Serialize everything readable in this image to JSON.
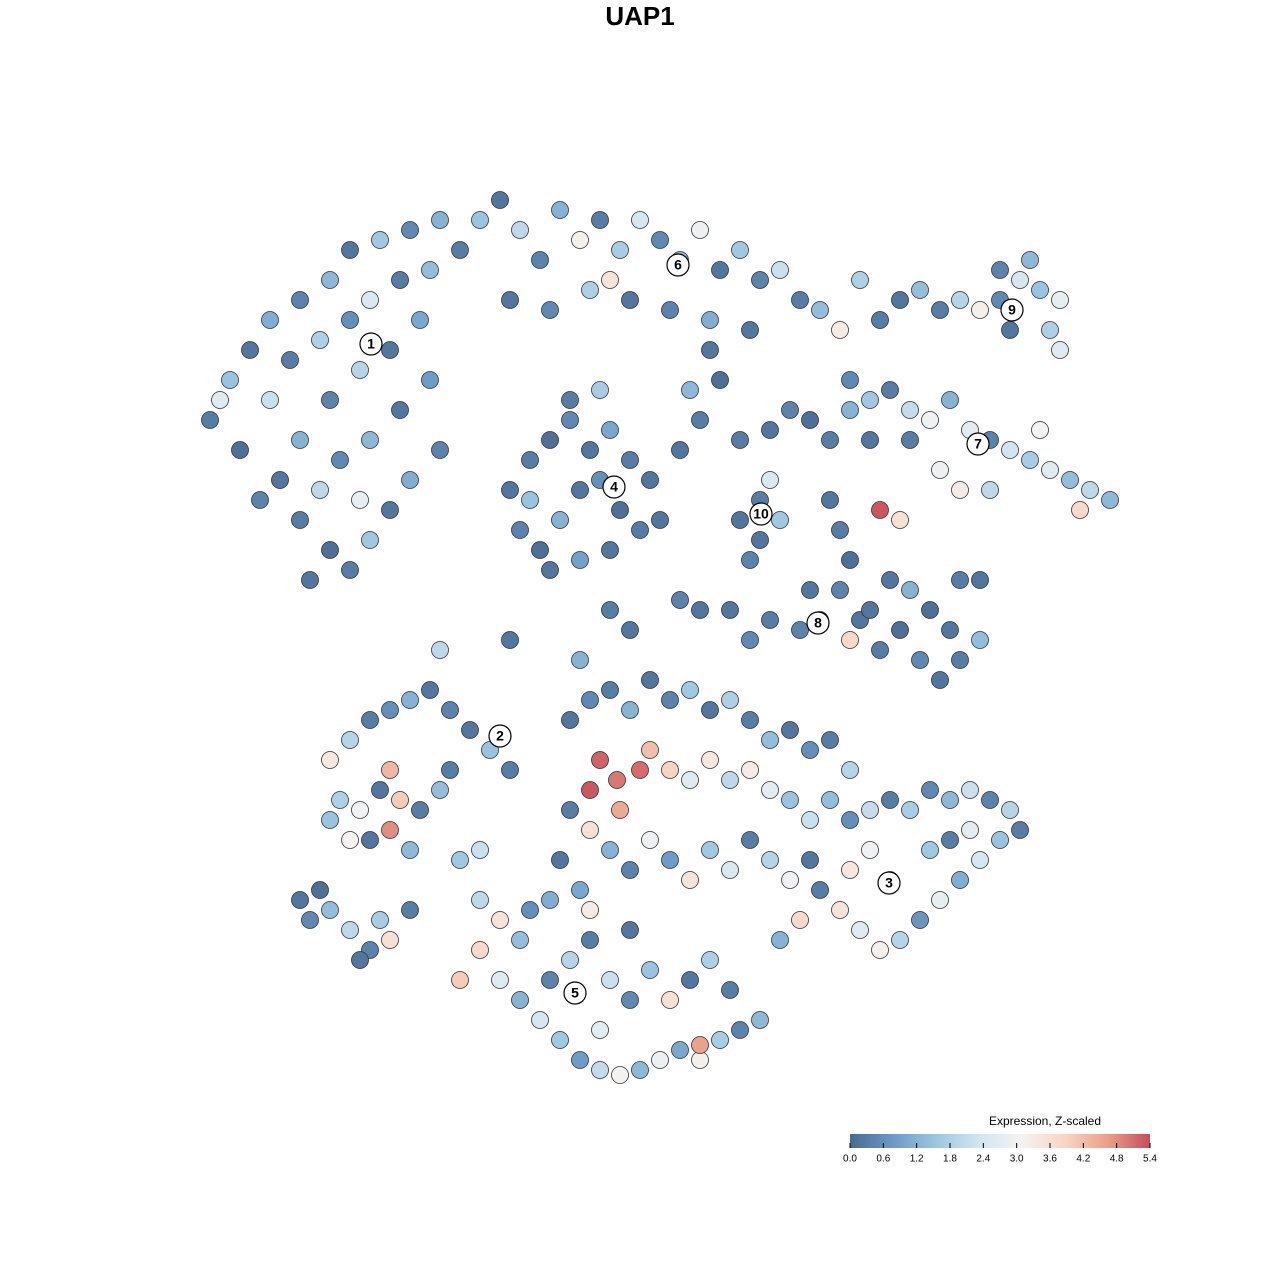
{
  "chart_data": {
    "type": "scatter",
    "title": "UAP1",
    "xlim": [
      0,
      100
    ],
    "ylim": [
      0,
      100
    ],
    "grid": false,
    "point_stroke": "#333333",
    "x": [
      6,
      8,
      10,
      12,
      15,
      18,
      20,
      23,
      26,
      29,
      9,
      12,
      14,
      17,
      20,
      22,
      25,
      28,
      13,
      15,
      18,
      21,
      24,
      27,
      15,
      17,
      19,
      22,
      25,
      28,
      18,
      20,
      22,
      24,
      26,
      29,
      16,
      21,
      11,
      7,
      31,
      33,
      35,
      37,
      39,
      41,
      43,
      45,
      47,
      49,
      51,
      53,
      55,
      57,
      59,
      61,
      63,
      65,
      67,
      69,
      36,
      40,
      44,
      48,
      52,
      56,
      60,
      46,
      36,
      38,
      40,
      42,
      44,
      46,
      48,
      50,
      37,
      39,
      41,
      43,
      45,
      47,
      49,
      40,
      43,
      46,
      42,
      45,
      51,
      38,
      53,
      55,
      57,
      54,
      56,
      59,
      59,
      61,
      63,
      61,
      62,
      60,
      62,
      64,
      66,
      68,
      70,
      73,
      75,
      77,
      79,
      81,
      83,
      85,
      87,
      89,
      91,
      86,
      90,
      91,
      85,
      71,
      88,
      70,
      72,
      74,
      76,
      78,
      80,
      82,
      84,
      86,
      88,
      90,
      92,
      94,
      96,
      93,
      76,
      79,
      81,
      84,
      72,
      89,
      73,
      75,
      68,
      69,
      70,
      69,
      71,
      73,
      75,
      77,
      79,
      81,
      83,
      80,
      78,
      76,
      74,
      72,
      67,
      65,
      70,
      66,
      62,
      60,
      58,
      81,
      83,
      29,
      36,
      46,
      48,
      53,
      55,
      43,
      18,
      20,
      22,
      24,
      26,
      28,
      30,
      32,
      34,
      36,
      19,
      21,
      23,
      25,
      27,
      29,
      22,
      24,
      26,
      20,
      18,
      30,
      33,
      31,
      24,
      15,
      16,
      18,
      20,
      22,
      24,
      21,
      23,
      26,
      17,
      42,
      44,
      46,
      48,
      50,
      52,
      54,
      56,
      58,
      60,
      62,
      64,
      66,
      68,
      70,
      45,
      46.7,
      49,
      44,
      47,
      50,
      52,
      54,
      56,
      58,
      60,
      62,
      64,
      66,
      42,
      44,
      46,
      48,
      50,
      52,
      54,
      56,
      58,
      60,
      62,
      64,
      41,
      43,
      68,
      70,
      72,
      74,
      76,
      78,
      80,
      82,
      84,
      86,
      87,
      85,
      83,
      81,
      79,
      77,
      75,
      73,
      71,
      69,
      67,
      65,
      63,
      74,
      72,
      78,
      66,
      80,
      82,
      70,
      33,
      35,
      37,
      33,
      35,
      37,
      39,
      41,
      43,
      45,
      47,
      49,
      51,
      53,
      55,
      57,
      59,
      61,
      40,
      42,
      44,
      46,
      48,
      50,
      52,
      54,
      56,
      58,
      38,
      40,
      44,
      48,
      55,
      31,
      45
    ],
    "y": [
      68,
      72,
      75,
      78,
      80,
      82,
      85,
      86,
      87,
      88,
      65,
      70,
      74,
      76,
      78,
      80,
      82,
      83,
      62,
      66,
      70,
      73,
      75,
      78,
      58,
      61,
      64,
      66,
      69,
      72,
      55,
      53,
      56,
      59,
      62,
      65,
      52,
      60,
      60,
      70,
      85,
      88,
      90,
      87,
      84,
      89,
      86,
      88,
      85,
      88,
      86,
      84,
      87,
      83,
      85,
      82,
      83,
      80,
      79,
      77,
      80,
      79,
      81,
      80,
      79,
      78,
      77,
      82,
      61,
      64,
      66,
      68,
      65,
      67,
      64,
      62,
      57,
      55,
      58,
      61,
      62,
      59,
      57,
      53,
      54,
      55,
      70,
      71,
      58,
      60,
      65,
      68,
      72,
      71,
      75,
      66,
      58,
      60,
      58,
      56,
      62,
      54,
      67,
      69,
      68,
      66,
      69,
      78,
      80,
      81,
      79,
      80,
      79,
      80,
      82,
      81,
      80,
      77,
      77,
      75,
      83,
      82,
      84,
      72,
      70,
      71,
      69,
      68,
      70,
      67,
      66,
      65,
      64,
      63,
      62,
      61,
      60,
      59,
      66,
      63,
      61,
      61,
      66,
      67,
      59,
      58,
      60,
      57,
      54,
      51,
      48,
      45,
      47,
      44,
      42,
      44,
      46,
      47,
      49,
      51,
      52,
      49,
      48,
      47,
      46,
      51,
      48,
      46,
      49,
      52,
      52,
      45,
      46,
      49,
      47,
      50,
      49,
      44,
      34,
      36,
      38,
      39,
      40,
      41,
      39,
      37,
      35,
      33,
      30,
      29,
      31,
      30,
      29,
      31,
      26,
      27,
      25,
      26,
      28,
      33,
      25,
      24,
      33,
      20,
      18,
      19,
      17,
      15,
      16,
      14,
      18,
      19,
      21,
      38,
      40,
      41,
      39,
      42,
      40,
      41,
      39,
      40,
      38,
      36,
      37,
      35,
      36,
      33,
      34,
      32,
      33,
      31,
      29,
      35,
      33,
      32,
      34,
      32,
      33,
      31,
      30,
      28,
      29,
      27,
      25,
      23,
      26,
      24,
      22,
      25,
      23,
      26,
      24,
      22,
      24,
      21,
      30,
      28,
      29,
      30,
      29,
      31,
      30,
      31,
      30,
      29,
      27,
      26,
      24,
      22,
      20,
      18,
      16,
      15,
      17,
      19,
      21,
      18,
      16,
      22,
      25,
      25,
      24,
      26,
      27,
      23,
      20,
      18,
      16,
      15,
      12,
      10,
      8,
      6,
      4,
      3,
      2.5,
      3,
      4,
      5,
      4,
      6,
      7,
      8,
      12,
      14,
      16,
      12,
      10,
      13,
      10,
      12,
      14,
      11,
      19,
      20,
      19,
      17,
      5.5,
      12,
      7
    ],
    "values": [
      0.3,
      1.5,
      0.2,
      1.1,
      0.4,
      1.3,
      0.2,
      1.6,
      0.5,
      1.2,
      0.1,
      2.2,
      0.3,
      1.8,
      0.6,
      2.5,
      0.3,
      1.4,
      0.2,
      1.2,
      0.4,
      1.9,
      0.2,
      1.0,
      0.3,
      2.0,
      0.5,
      1.3,
      0.2,
      0.8,
      0.1,
      0.3,
      1.6,
      0.2,
      1.1,
      0.4,
      0.2,
      2.8,
      0.4,
      2.6,
      0.3,
      1.5,
      0.2,
      2.0,
      0.4,
      1.2,
      3.2,
      0.3,
      1.7,
      2.4,
      0.5,
      1.3,
      2.9,
      0.2,
      1.6,
      0.4,
      2.2,
      0.3,
      1.4,
      3.3,
      0.2,
      0.5,
      1.8,
      0.2,
      0.4,
      1.1,
      0.2,
      3.5,
      0.2,
      0.3,
      0.1,
      0.5,
      0.2,
      1.0,
      0.3,
      0.2,
      0.4,
      0.1,
      1.2,
      0.2,
      0.6,
      0.1,
      0.3,
      0.2,
      0.9,
      0.2,
      0.3,
      1.7,
      0.2,
      1.5,
      0.2,
      0.3,
      0.1,
      1.3,
      0.2,
      0.3,
      0.2,
      0.3,
      1.6,
      0.2,
      2.5,
      0.4,
      0.2,
      0.4,
      0.1,
      0.3,
      1.2,
      0.3,
      0.2,
      1.4,
      0.3,
      1.9,
      3.2,
      0.5,
      2.4,
      1.5,
      2.8,
      0.2,
      1.8,
      2.6,
      0.4,
      1.8,
      1.3,
      0.5,
      1.6,
      0.3,
      2.1,
      3.0,
      1.2,
      2.7,
      0.4,
      2.3,
      1.7,
      2.6,
      1.4,
      2.0,
      1.3,
      3.8,
      0.3,
      2.9,
      3.3,
      2.0,
      0.2,
      3.1,
      5.3,
      3.6,
      0.2,
      0.3,
      0.1,
      0.4,
      0.2,
      0.3,
      0.1,
      0.5,
      0.2,
      0.3,
      1.4,
      0.2,
      0.1,
      1.2,
      0.2,
      0.2,
      0.3,
      0.4,
      3.8,
      0.2,
      0.3,
      0.5,
      0.2,
      0.3,
      0.2,
      2.0,
      0.2,
      0.3,
      0.2,
      0.4,
      0.2,
      1.2,
      3.4,
      1.9,
      0.3,
      0.6,
      1.2,
      0.2,
      0.4,
      0.2,
      1.5,
      0.3,
      1.8,
      3.0,
      0.2,
      4.0,
      0.3,
      1.4,
      0.2,
      4.8,
      1.3,
      3.1,
      1.5,
      0.3,
      2.2,
      1.6,
      4.3,
      0.2,
      0.5,
      1.4,
      2.0,
      0.4,
      3.6,
      0.2,
      1.7,
      0.3,
      0.1,
      0.2,
      0.5,
      0.3,
      1.2,
      0.2,
      0.4,
      1.6,
      0.2,
      1.8,
      0.3,
      1.4,
      0.2,
      0.6,
      0.3,
      1.9,
      5.2,
      5.0,
      5.1,
      5.3,
      4.5,
      4.2,
      3.9,
      2.6,
      3.4,
      2.0,
      3.3,
      2.7,
      1.5,
      2.2,
      0.3,
      3.6,
      1.2,
      0.4,
      2.9,
      0.8,
      3.5,
      1.6,
      2.5,
      0.3,
      1.9,
      3.0,
      0.2,
      1.0,
      1.4,
      0.6,
      2.1,
      0.3,
      1.7,
      0.5,
      1.3,
      2.2,
      0.4,
      1.9,
      0.3,
      1.5,
      2.4,
      1.1,
      2.8,
      0.7,
      1.9,
      3.2,
      2.6,
      3.5,
      0.3,
      3.8,
      1.2,
      2.5,
      3.0,
      1.6,
      0.2,
      0.3,
      2.7,
      3.4,
      2.0,
      3.5,
      1.4,
      3.8,
      2.6,
      1.2,
      2.4,
      1.6,
      0.8,
      2.1,
      3.1,
      1.3,
      2.9,
      1.0,
      3.2,
      1.7,
      0.4,
      1.3,
      0.4,
      1.9,
      0.3,
      2.2,
      0.5,
      1.5,
      3.6,
      0.2,
      1.8,
      0.3,
      0.6,
      1.1,
      3.3,
      0.2,
      4.6,
      4.0,
      2.7
    ],
    "annotations": [
      {
        "text": "1",
        "x": 22.1,
        "y": 75.6
      },
      {
        "text": "6",
        "x": 52.8,
        "y": 83.5
      },
      {
        "text": "9",
        "x": 86.2,
        "y": 79
      },
      {
        "text": "7",
        "x": 82.8,
        "y": 65.6
      },
      {
        "text": "4",
        "x": 46.4,
        "y": 61.3
      },
      {
        "text": "10",
        "x": 61.1,
        "y": 58.6
      },
      {
        "text": "8",
        "x": 66.8,
        "y": 47.7
      },
      {
        "text": "2",
        "x": 35,
        "y": 36.4
      },
      {
        "text": "3",
        "x": 73.9,
        "y": 21.7
      },
      {
        "text": "5",
        "x": 42.5,
        "y": 10.7
      }
    ],
    "colorbar": {
      "title": "Expression, Z-scaled",
      "legend": "bottom-right",
      "clim": [
        0,
        5.4
      ],
      "colors": [
        "#4a6a90",
        "#6b9ac6",
        "#9cc6e0",
        "#d2e5f0",
        "#f4f3f2",
        "#f8d6c5",
        "#e9a08a",
        "#c64d5b"
      ],
      "ticks": [
        {
          "value": 0,
          "label": "0.0"
        },
        0.6,
        1.2,
        1.8,
        2.4,
        {
          "value": 3,
          "label": "3.0"
        },
        3.6,
        4.2,
        4.8,
        5.4
      ]
    }
  }
}
